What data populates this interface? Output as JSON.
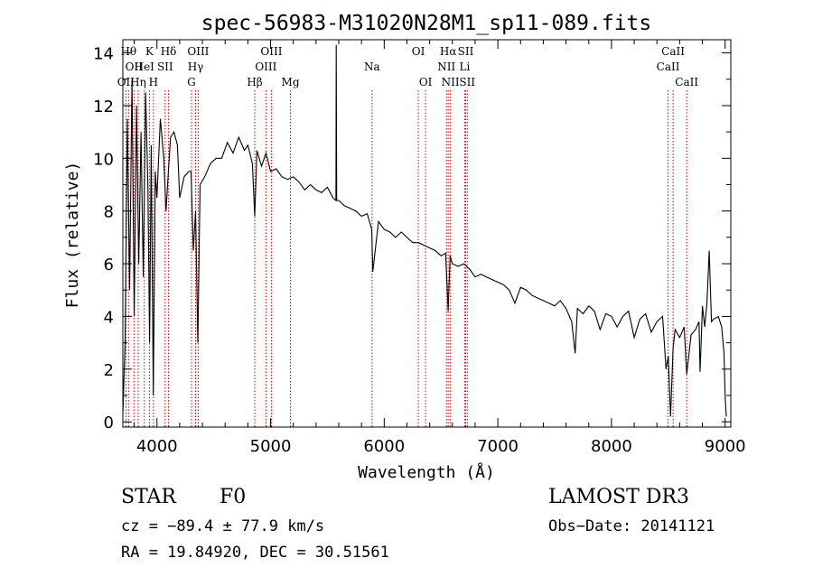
{
  "chart_data": {
    "type": "line",
    "title": "spec-56983-M31020N28M1_sp11-089.fits",
    "xlabel": "Wavelength (Å)",
    "ylabel": "Flux (relative)",
    "xlim": [
      3700,
      9050
    ],
    "ylim": [
      -0.2,
      14.5
    ],
    "x_ticks": [
      4000,
      5000,
      6000,
      7000,
      8000,
      9000
    ],
    "y_ticks": [
      0,
      2,
      4,
      6,
      8,
      10,
      12,
      14
    ],
    "grid": false,
    "series": [
      {
        "name": "flux",
        "x": [
          3700,
          3720,
          3740,
          3760,
          3780,
          3800,
          3820,
          3840,
          3860,
          3880,
          3900,
          3920,
          3935,
          3950,
          3968,
          3985,
          4000,
          4030,
          4060,
          4080,
          4101,
          4120,
          4150,
          4180,
          4200,
          4240,
          4280,
          4300,
          4320,
          4340,
          4360,
          4380,
          4420,
          4470,
          4520,
          4570,
          4620,
          4670,
          4720,
          4770,
          4800,
          4840,
          4861,
          4880,
          4920,
          4960,
          5000,
          5050,
          5100,
          5150,
          5200,
          5250,
          5300,
          5350,
          5400,
          5450,
          5500,
          5550,
          5575,
          5578,
          5582,
          5600,
          5650,
          5700,
          5750,
          5800,
          5850,
          5890,
          5900,
          5950,
          6000,
          6050,
          6100,
          6150,
          6200,
          6250,
          6300,
          6350,
          6400,
          6450,
          6500,
          6540,
          6563,
          6580,
          6600,
          6650,
          6700,
          6750,
          6800,
          6850,
          6900,
          6950,
          7000,
          7050,
          7100,
          7150,
          7200,
          7250,
          7300,
          7350,
          7400,
          7450,
          7500,
          7550,
          7600,
          7650,
          7680,
          7700,
          7750,
          7800,
          7850,
          7900,
          7950,
          8000,
          8050,
          8100,
          8150,
          8200,
          8250,
          8300,
          8350,
          8400,
          8450,
          8480,
          8500,
          8520,
          8542,
          8560,
          8600,
          8640,
          8662,
          8700,
          8740,
          8770,
          8780,
          8800,
          8820,
          8840,
          8860,
          8880,
          8900,
          8940,
          8970,
          8990,
          9000,
          9010
        ],
        "values": [
          0.3,
          3.0,
          11.5,
          5.0,
          13.0,
          4.0,
          12.0,
          6.0,
          11.0,
          5.5,
          12.5,
          9.0,
          3.0,
          10.5,
          1.0,
          9.5,
          8.5,
          11.5,
          10.0,
          8.0,
          9.5,
          10.8,
          11.0,
          10.5,
          8.5,
          9.3,
          9.5,
          9.5,
          6.5,
          8.0,
          3.0,
          9.0,
          9.3,
          9.8,
          10.0,
          10.0,
          10.6,
          10.2,
          10.8,
          10.3,
          10.5,
          9.8,
          7.8,
          10.3,
          9.7,
          10.2,
          9.5,
          9.6,
          9.3,
          9.2,
          9.3,
          9.1,
          8.8,
          9.0,
          8.8,
          8.7,
          8.9,
          8.5,
          8.4,
          14.3,
          8.4,
          8.4,
          8.2,
          8.1,
          8.0,
          7.8,
          7.9,
          7.3,
          5.7,
          7.6,
          7.3,
          7.2,
          7.0,
          7.2,
          7.0,
          6.8,
          6.8,
          6.7,
          6.6,
          6.5,
          6.3,
          6.4,
          4.2,
          6.3,
          6.0,
          5.9,
          6.0,
          5.8,
          5.5,
          5.6,
          5.5,
          5.4,
          5.3,
          5.2,
          5.0,
          4.5,
          5.1,
          5.0,
          4.8,
          4.7,
          4.6,
          4.5,
          4.4,
          4.6,
          4.3,
          3.8,
          2.6,
          4.3,
          4.1,
          4.4,
          4.2,
          3.5,
          4.1,
          4.0,
          3.6,
          4.0,
          4.2,
          3.2,
          3.9,
          4.1,
          3.4,
          3.8,
          4.0,
          2.0,
          2.5,
          0.2,
          2.8,
          3.5,
          3.2,
          3.6,
          1.8,
          3.3,
          3.5,
          3.8,
          1.9,
          4.4,
          3.6,
          4.5,
          6.5,
          3.8,
          3.9,
          4.0,
          3.6,
          2.6,
          1.0,
          0.2
        ]
      }
    ],
    "line_markers": [
      {
        "wavelength": 3727,
        "label": "OII",
        "row": 3
      },
      {
        "wavelength": 3750,
        "label": "Hθ",
        "row": 1
      },
      {
        "wavelength": 3798,
        "label": "OII",
        "row": 2
      },
      {
        "wavelength": 3835,
        "label": "Hη",
        "row": 3
      },
      {
        "wavelength": 3889,
        "label": "HeI",
        "row": 2
      },
      {
        "wavelength": 3934,
        "label": "K",
        "row": 1
      },
      {
        "wavelength": 3969,
        "label": "H",
        "row": 3
      },
      {
        "wavelength": 4072,
        "label": "SII",
        "row": 2
      },
      {
        "wavelength": 4102,
        "label": "Hδ",
        "row": 1
      },
      {
        "wavelength": 4304,
        "label": "G",
        "row": 3
      },
      {
        "wavelength": 4340,
        "label": "Hγ",
        "row": 2
      },
      {
        "wavelength": 4363,
        "label": "OIII",
        "row": 1
      },
      {
        "wavelength": 4861,
        "label": "Hβ",
        "row": 3
      },
      {
        "wavelength": 4959,
        "label": "OIII",
        "row": 2
      },
      {
        "wavelength": 5007,
        "label": "OIII",
        "row": 1
      },
      {
        "wavelength": 5175,
        "label": "Mg",
        "row": 3
      },
      {
        "wavelength": 5893,
        "label": "Na",
        "row": 2
      },
      {
        "wavelength": 6300,
        "label": "OI",
        "row": 1
      },
      {
        "wavelength": 6364,
        "label": "OI",
        "row": 3
      },
      {
        "wavelength": 6548,
        "label": "NII",
        "row": 2
      },
      {
        "wavelength": 6563,
        "label": "Hα",
        "row": 1
      },
      {
        "wavelength": 6583,
        "label": "NII",
        "row": 3
      },
      {
        "wavelength": 6708,
        "label": "Li",
        "row": 2
      },
      {
        "wavelength": 6717,
        "label": "SII",
        "row": 1
      },
      {
        "wavelength": 6731,
        "label": "SII",
        "row": 3
      },
      {
        "wavelength": 8498,
        "label": "CaII",
        "row": 2
      },
      {
        "wavelength": 8542,
        "label": "CaII",
        "row": 1
      },
      {
        "wavelength": 8662,
        "label": "CaII",
        "row": 3
      }
    ],
    "marker_color": "#cc0000"
  },
  "info": {
    "class": "STAR",
    "subclass": "F0",
    "survey": "LAMOST DR3",
    "cz": "cz = −89.4 ± 77.9 km/s",
    "obs_date": "Obs−Date: 20141121",
    "radec": "RA =  19.84920, DEC =  30.51561"
  }
}
